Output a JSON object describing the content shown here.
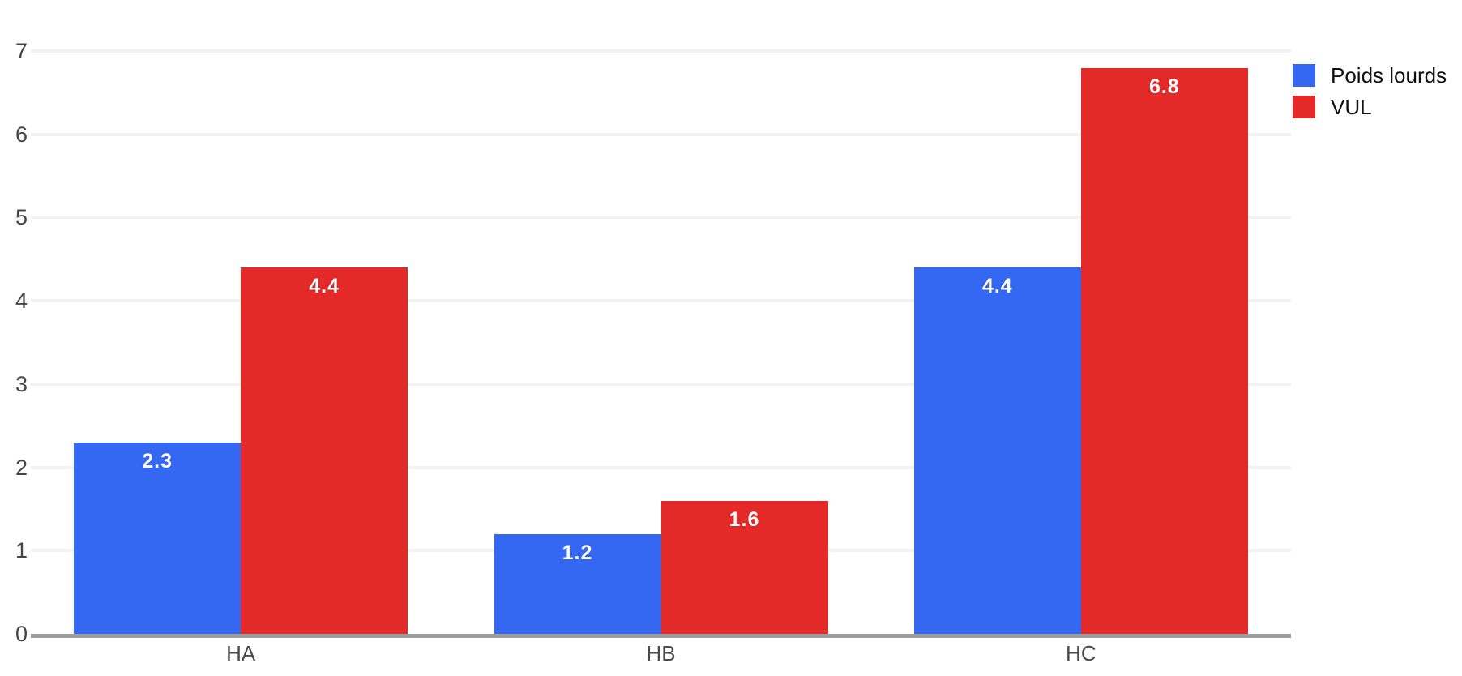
{
  "chart_data": {
    "type": "bar",
    "categories": [
      "HA",
      "HB",
      "HC"
    ],
    "series": [
      {
        "name": "Poids lourds",
        "color": "#3568F2",
        "values": [
          2.3,
          1.2,
          4.4
        ]
      },
      {
        "name": "VUL",
        "color": "#E42929",
        "values": [
          4.4,
          1.6,
          6.8
        ]
      }
    ],
    "title": "",
    "xlabel": "",
    "ylabel": "",
    "ylim": [
      0,
      7
    ],
    "yticks": [
      0,
      1,
      2,
      3,
      4,
      5,
      6,
      7
    ],
    "grid": true,
    "legend_position": "top-right",
    "value_labels": true
  },
  "legend": {
    "items": [
      {
        "label": "Poids lourds",
        "color": "#3568F2"
      },
      {
        "label": "VUL",
        "color": "#E42929"
      }
    ]
  },
  "colors": {
    "gridline": "#f2f2f2",
    "axis": "#9d9d9d",
    "tick_text": "#454545",
    "background": "#ffffff"
  }
}
